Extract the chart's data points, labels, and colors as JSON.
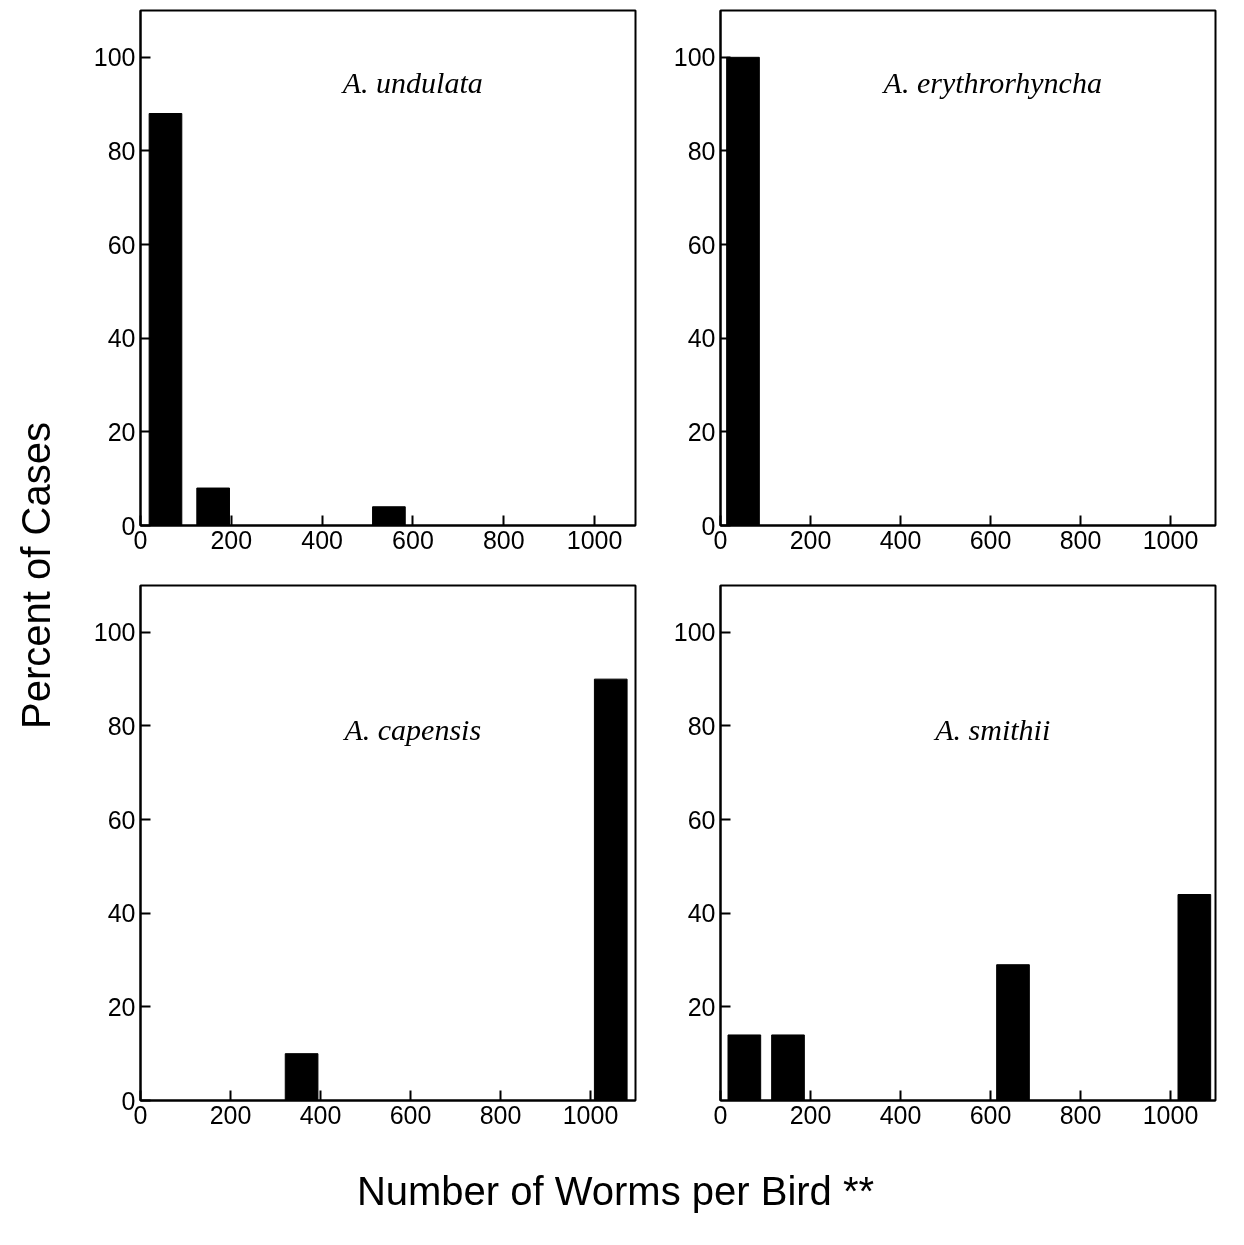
{
  "chart_data": [
    {
      "type": "bar",
      "title": "A. undulata",
      "ylabel": "Percent of Cases",
      "x": [
        55,
        160,
        547
      ],
      "values": [
        88,
        8,
        4
      ],
      "color": "#000000",
      "xlim": [
        0,
        1090
      ],
      "ylim": [
        0,
        110
      ],
      "xticks": [
        0,
        200,
        400,
        600,
        800,
        1000
      ],
      "yticks": [
        0,
        20,
        40,
        60,
        80,
        100
      ],
      "grid": false
    },
    {
      "type": "bar",
      "title": "A. erythrorhyncha",
      "x": [
        50
      ],
      "values": [
        100
      ],
      "color": "#000000",
      "xlim": [
        0,
        1100
      ],
      "ylim": [
        0,
        110
      ],
      "xticks": [
        0,
        200,
        400,
        600,
        800,
        1000
      ],
      "yticks": [
        0,
        20,
        40,
        60,
        80,
        100
      ],
      "grid": false
    },
    {
      "type": "bar",
      "title": "A. capensis",
      "xlabel": "Number of Worms per Bird **",
      "x": [
        358,
        1045
      ],
      "values": [
        10,
        90
      ],
      "color": "#000000",
      "xlim": [
        0,
        1100
      ],
      "ylim": [
        0,
        110
      ],
      "xticks": [
        0,
        200,
        400,
        600,
        800,
        1000
      ],
      "yticks": [
        0,
        20,
        40,
        60,
        80,
        100
      ],
      "grid": false
    },
    {
      "type": "bar",
      "title": "A. smithii",
      "x": [
        53,
        150,
        650,
        1053
      ],
      "values": [
        14,
        14,
        29,
        44
      ],
      "color": "#000000",
      "xlim": [
        0,
        1100
      ],
      "ylim": [
        0,
        110
      ],
      "xticks": [
        0,
        200,
        400,
        600,
        800,
        1000
      ],
      "yticks": [
        20,
        40,
        60,
        80,
        100
      ],
      "grid": false
    }
  ]
}
